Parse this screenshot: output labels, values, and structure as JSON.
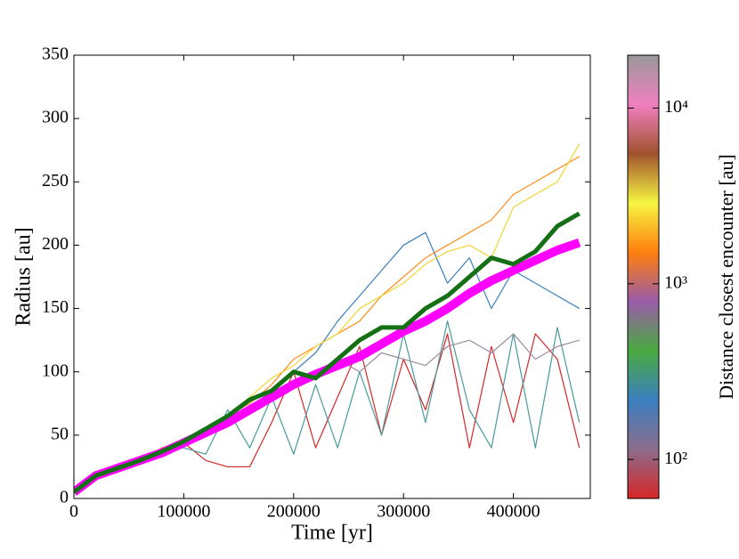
{
  "chart_data": {
    "type": "line",
    "xlabel": "Time [yr]",
    "ylabel": "Radius [au]",
    "x": [
      0,
      20000,
      40000,
      60000,
      80000,
      100000,
      120000,
      140000,
      160000,
      180000,
      200000,
      220000,
      240000,
      260000,
      280000,
      300000,
      320000,
      340000,
      360000,
      380000,
      400000,
      420000,
      440000,
      460000
    ],
    "xlim": [
      0,
      470000
    ],
    "xticks": [
      0,
      100000,
      200000,
      300000,
      400000
    ],
    "ylim": [
      0,
      350
    ],
    "yticks": [
      0,
      50,
      100,
      150,
      200,
      250,
      300,
      350
    ],
    "series": [
      {
        "color": "#d62728",
        "width": 1.2,
        "values": [
          5,
          18,
          24,
          30,
          36,
          44,
          30,
          25,
          25,
          60,
          100,
          40,
          80,
          120,
          50,
          110,
          70,
          130,
          40,
          120,
          60,
          130,
          110,
          40
        ]
      },
      {
        "color": "#4a9a9a",
        "width": 1.2,
        "values": [
          5,
          18,
          24,
          30,
          36,
          40,
          35,
          70,
          40,
          80,
          35,
          90,
          40,
          100,
          50,
          130,
          60,
          140,
          70,
          40,
          130,
          40,
          135,
          60
        ]
      },
      {
        "color": "#9a8aa0",
        "width": 1.2,
        "values": [
          5,
          18,
          24,
          30,
          36,
          44,
          50,
          58,
          70,
          80,
          90,
          100,
          110,
          100,
          115,
          110,
          105,
          120,
          125,
          115,
          130,
          110,
          120,
          125
        ]
      },
      {
        "color": "#3a7fbf",
        "width": 1.2,
        "values": [
          5,
          18,
          24,
          30,
          36,
          44,
          52,
          60,
          70,
          85,
          100,
          115,
          140,
          160,
          180,
          200,
          210,
          170,
          190,
          150,
          180,
          170,
          160,
          150
        ]
      },
      {
        "color": "#ff8c1a",
        "width": 1.2,
        "values": [
          5,
          18,
          24,
          30,
          40,
          45,
          55,
          65,
          75,
          90,
          110,
          120,
          130,
          140,
          160,
          175,
          190,
          200,
          210,
          220,
          240,
          250,
          260,
          270
        ]
      },
      {
        "color": "#f2d530",
        "width": 1.2,
        "values": [
          5,
          18,
          24,
          30,
          38,
          46,
          56,
          66,
          80,
          95,
          105,
          120,
          130,
          150,
          160,
          170,
          185,
          195,
          200,
          190,
          230,
          240,
          250,
          280
        ]
      },
      {
        "color": "#ff00ff",
        "width": 10,
        "values": [
          5,
          18,
          24,
          30,
          36,
          44,
          52,
          60,
          70,
          80,
          90,
          98,
          105,
          112,
          122,
          132,
          140,
          150,
          162,
          172,
          180,
          188,
          196,
          202
        ]
      },
      {
        "color": "#157015",
        "width": 5,
        "values": [
          5,
          18,
          24,
          30,
          37,
          45,
          55,
          65,
          78,
          85,
          100,
          95,
          110,
          125,
          135,
          135,
          150,
          160,
          175,
          190,
          185,
          195,
          215,
          225
        ]
      }
    ],
    "colorbar": {
      "label": "Distance closest encounter [au]",
      "log": true,
      "lim": [
        60,
        20000
      ],
      "ticks": [
        {
          "value": 100,
          "label": "10²"
        },
        {
          "value": 1000,
          "label": "10³"
        },
        {
          "value": 10000,
          "label": "10⁴"
        }
      ],
      "colors": [
        "#d62728",
        "#8c6d8c",
        "#3a7fbf",
        "#4aaa40",
        "#9a5ba8",
        "#ff7f0e",
        "#f5f542",
        "#a0522d",
        "#f07fc0",
        "#999999"
      ]
    }
  }
}
